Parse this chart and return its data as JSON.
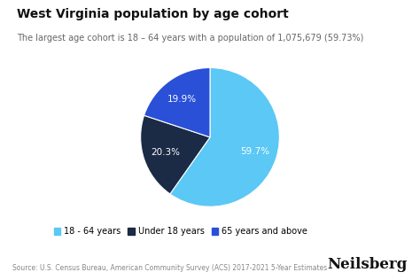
{
  "title": "West Virginia population by age cohort",
  "subtitle": "The largest age cohort is 18 – 64 years with a population of 1,075,679 (59.73%)",
  "slices": [
    59.7,
    20.3,
    19.9
  ],
  "labels": [
    "18 - 64 years",
    "Under 18 years",
    "65 years and above"
  ],
  "colors": [
    "#5bc8f5",
    "#1b2a45",
    "#2a50d8"
  ],
  "autopct_labels": [
    "59.7%",
    "20.3%",
    "19.9%"
  ],
  "label_colors": [
    "#e0f0f8",
    "#cccccc",
    "#ffffff"
  ],
  "startangle": 90,
  "counterclock": false,
  "source": "Source: U.S. Census Bureau, American Community Survey (ACS) 2017-2021 5-Year Estimates",
  "branding": "Neilsberg",
  "background_color": "#ffffff",
  "title_fontsize": 10,
  "subtitle_fontsize": 7,
  "legend_fontsize": 7,
  "source_fontsize": 5.5,
  "branding_fontsize": 12
}
